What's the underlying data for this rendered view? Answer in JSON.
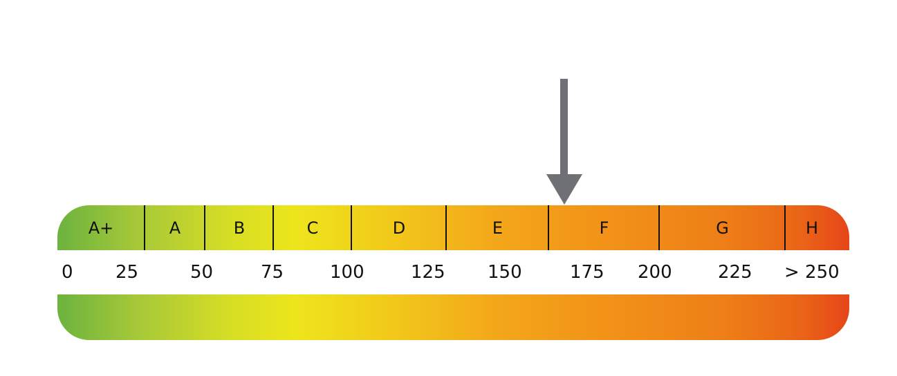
{
  "scale": {
    "classes": [
      {
        "label": "A+"
      },
      {
        "label": "A"
      },
      {
        "label": "B"
      },
      {
        "label": "C"
      },
      {
        "label": "D"
      },
      {
        "label": "E"
      },
      {
        "label": "F"
      },
      {
        "label": "G"
      },
      {
        "label": "H"
      }
    ],
    "ticks": [
      "0",
      "25",
      "50",
      "75",
      "100",
      "125",
      "150",
      "175",
      "200",
      "225",
      "> 250"
    ],
    "indicator": {
      "active_class": "F"
    },
    "colors": {
      "arrow": "#6f7075",
      "start": "#6cb33f",
      "middle": "#ede51c",
      "end": "#e64619",
      "divider": "#111111",
      "text": "#111111"
    }
  }
}
